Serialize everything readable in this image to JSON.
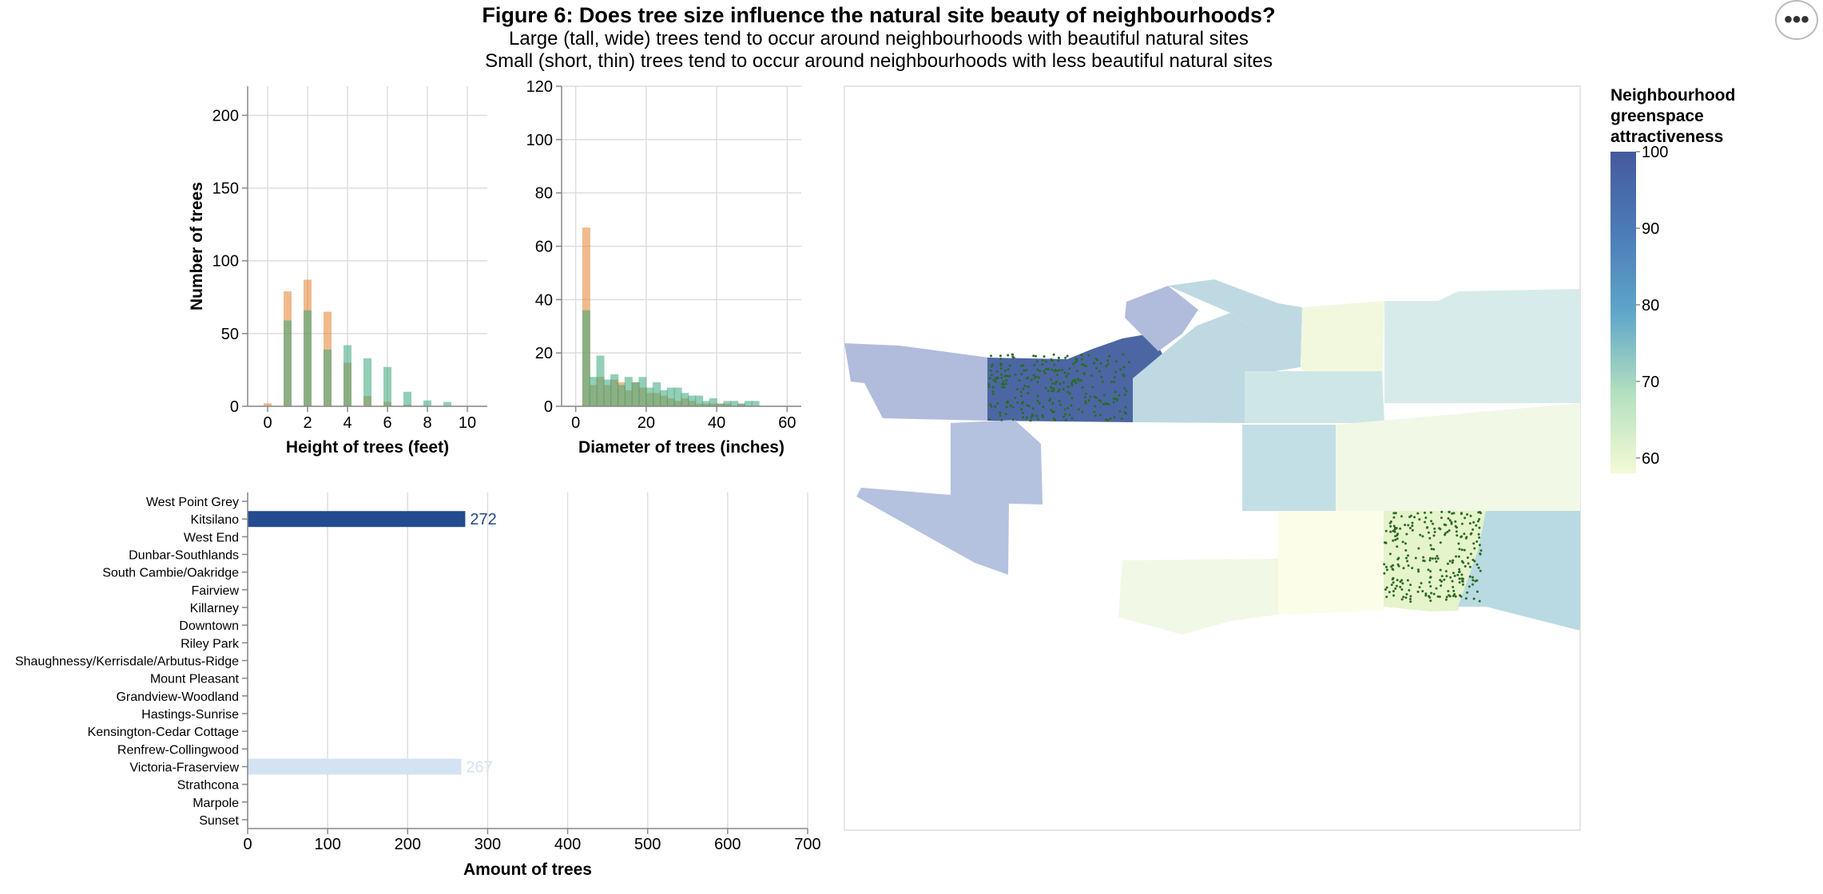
{
  "figure": {
    "title": "Figure 6: Does tree size influence the natural site beauty of neighbourhoods?",
    "subtitle_1": "Large (tall, wide) trees tend to occur around neighbourhoods with beautiful natural sites",
    "subtitle_2": "Small (short, thin) trees tend to occur around neighbourhoods with less beautiful natural sites",
    "menu_label": "•••"
  },
  "colors": {
    "orange": "#e4822e",
    "teal": "#3aa57c",
    "grid": "#dddddd",
    "axis": "#888888",
    "bar_high": "#244a8f",
    "bar_low": "#d3e3f3",
    "dots": "#2d6a24"
  },
  "chart_data": [
    {
      "type": "bar",
      "subtype": "overlapping histogram",
      "xlabel": "Height of trees (feet)",
      "ylabel": "Number of trees",
      "xlim": [
        -1,
        11
      ],
      "ylim": [
        0,
        220
      ],
      "xticks": [
        0,
        2,
        4,
        6,
        8,
        10
      ],
      "yticks": [
        0,
        50,
        100,
        150,
        200
      ],
      "bin_centers": [
        0,
        1,
        2,
        3,
        4,
        5,
        6,
        7,
        8,
        9
      ],
      "series": [
        {
          "color": "orange",
          "values": [
            2,
            79,
            87,
            65,
            30,
            7,
            3,
            1,
            0,
            0
          ]
        },
        {
          "color": "teal",
          "values": [
            0,
            59,
            66,
            39,
            42,
            33,
            27,
            10,
            4,
            3
          ]
        }
      ]
    },
    {
      "type": "bar",
      "subtype": "overlapping histogram",
      "xlabel": "Diameter of trees (inches)",
      "ylabel": "",
      "xlim": [
        -4,
        64
      ],
      "ylim": [
        0,
        120
      ],
      "xticks": [
        0,
        20,
        40,
        60
      ],
      "yticks": [
        0,
        20,
        40,
        60,
        80,
        100,
        120
      ],
      "bin_centers": [
        3,
        5,
        7,
        9,
        11,
        13,
        15,
        17,
        19,
        21,
        23,
        25,
        27,
        29,
        31,
        33,
        35,
        37,
        39,
        41,
        43,
        45,
        47,
        49,
        51,
        53
      ],
      "series": [
        {
          "color": "orange",
          "values": [
            67,
            8,
            11,
            8,
            10,
            9,
            6,
            9,
            7,
            5,
            5,
            4,
            3,
            2,
            3,
            2,
            1,
            1,
            1,
            1,
            1,
            0,
            1,
            0,
            0,
            0
          ]
        },
        {
          "color": "teal",
          "values": [
            36,
            11,
            19,
            10,
            12,
            8,
            11,
            9,
            11,
            7,
            9,
            6,
            7,
            7,
            5,
            4,
            4,
            2,
            3,
            1,
            2,
            2,
            1,
            2,
            2,
            0
          ]
        }
      ]
    },
    {
      "type": "bar",
      "orientation": "horizontal",
      "xlabel": "Amount of trees",
      "xlim": [
        0,
        700
      ],
      "xticks": [
        0,
        100,
        200,
        300,
        400,
        500,
        600,
        700
      ],
      "categories": [
        "West Point Grey",
        "Kitsilano",
        "West End",
        "Dunbar-Southlands",
        "South Cambie/Oakridge",
        "Fairview",
        "Killarney",
        "Downtown",
        "Riley Park",
        "Shaughnessy/Kerrisdale/Arbutus-Ridge",
        "Mount Pleasant",
        "Grandview-Woodland",
        "Hastings-Sunrise",
        "Kensington-Cedar Cottage",
        "Renfrew-Collingwood",
        "Victoria-Fraserview",
        "Strathcona",
        "Marpole",
        "Sunset"
      ],
      "values": [
        0,
        272,
        0,
        0,
        0,
        0,
        0,
        0,
        0,
        0,
        0,
        0,
        0,
        0,
        0,
        267,
        0,
        0,
        0
      ],
      "labels": {
        "Kitsilano": "272",
        "Victoria-Fraserview": "267"
      }
    },
    {
      "type": "map",
      "legend_title": [
        "Neighbourhood",
        "greenspace",
        "attractiveness"
      ],
      "legend_ticks": [
        "100",
        "90",
        "80",
        "70",
        "60"
      ],
      "color_domain": [
        58,
        100
      ]
    }
  ]
}
